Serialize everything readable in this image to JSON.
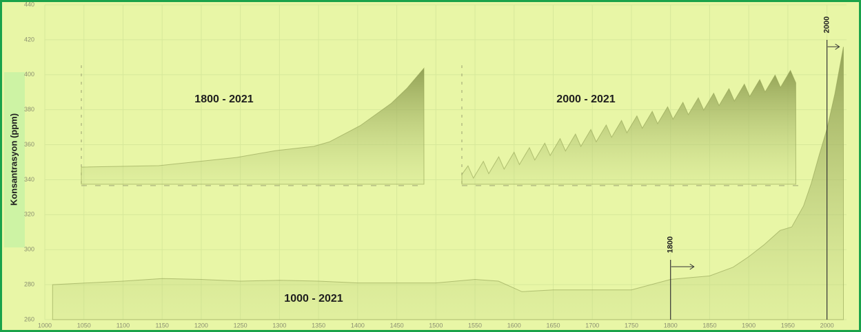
{
  "chart_data": [
    {
      "type": "area",
      "label": "1000 - 2021",
      "ylabel": "Konsantrasyon (ppm)",
      "color": "#8f9e52",
      "x": [
        1010,
        1100,
        1150,
        1200,
        1250,
        1300,
        1350,
        1400,
        1450,
        1500,
        1550,
        1580,
        1610,
        1650,
        1700,
        1750,
        1800,
        1825,
        1850,
        1880,
        1900,
        1920,
        1940,
        1955,
        1970,
        1980,
        1990,
        2000,
        2010,
        2021
      ],
      "values": [
        280,
        282,
        283.5,
        283,
        282,
        282.5,
        282,
        281,
        281,
        281,
        283,
        282,
        276,
        277,
        277,
        277,
        283,
        284,
        285,
        290,
        296,
        303,
        311,
        313,
        325,
        338,
        354,
        369,
        389,
        416
      ],
      "xlim": [
        1000,
        2025
      ],
      "ylim": [
        260,
        440
      ],
      "xticks": [
        1000,
        1050,
        1100,
        1150,
        1200,
        1250,
        1300,
        1350,
        1400,
        1450,
        1500,
        1550,
        1600,
        1650,
        1700,
        1750,
        1800,
        1850,
        1900,
        1950,
        2000
      ],
      "yticks": [
        260,
        280,
        300,
        320,
        340,
        360,
        380,
        400,
        420,
        440
      ],
      "grid": true,
      "annotations": [
        {
          "label": "1800",
          "x": 1800
        },
        {
          "label": "2000",
          "x": 2000
        }
      ]
    },
    {
      "type": "area",
      "label": "1800 - 2021",
      "color": "#8f9e52",
      "x": [
        1800,
        1850,
        1900,
        1925,
        1950,
        1960,
        1980,
        2000,
        2010,
        2021
      ],
      "values": [
        283,
        285,
        296,
        305,
        311,
        317,
        339,
        369,
        389,
        416
      ],
      "xlim": [
        1800,
        2021
      ],
      "ylim": [
        260,
        420
      ]
    },
    {
      "type": "area",
      "label": "2000 - 2021",
      "color": "#8f9e52",
      "x": [
        2000,
        2000.4,
        2000.75,
        2001.4,
        2001.75,
        2002.4,
        2002.75,
        2003.4,
        2003.75,
        2004.4,
        2004.75,
        2005.4,
        2005.75,
        2006.4,
        2006.75,
        2007.4,
        2007.75,
        2008.4,
        2008.75,
        2009.4,
        2009.75,
        2010.4,
        2010.75,
        2011.4,
        2011.75,
        2012.4,
        2012.75,
        2013.4,
        2013.75,
        2014.4,
        2014.75,
        2015.4,
        2015.75,
        2016.4,
        2016.75,
        2017.4,
        2017.75,
        2018.4,
        2018.75,
        2019.4,
        2019.75,
        2020.4,
        2020.75,
        2021.4,
        2021.75
      ],
      "values": [
        369.5,
        373.5,
        367.8,
        375.6,
        369.9,
        377.7,
        372.0,
        379.8,
        374.1,
        381.9,
        376.2,
        384.0,
        378.3,
        386.1,
        380.4,
        388.2,
        382.5,
        390.3,
        384.6,
        392.4,
        386.7,
        394.5,
        388.8,
        396.6,
        390.9,
        398.7,
        393.0,
        400.8,
        395.1,
        402.9,
        397.2,
        405.0,
        399.3,
        407.1,
        401.4,
        409.2,
        403.5,
        411.3,
        405.6,
        413.4,
        407.7,
        415.5,
        409.8,
        417.6,
        411.9
      ],
      "xlim": [
        2000,
        2022
      ],
      "ylim": [
        365,
        420
      ]
    }
  ]
}
